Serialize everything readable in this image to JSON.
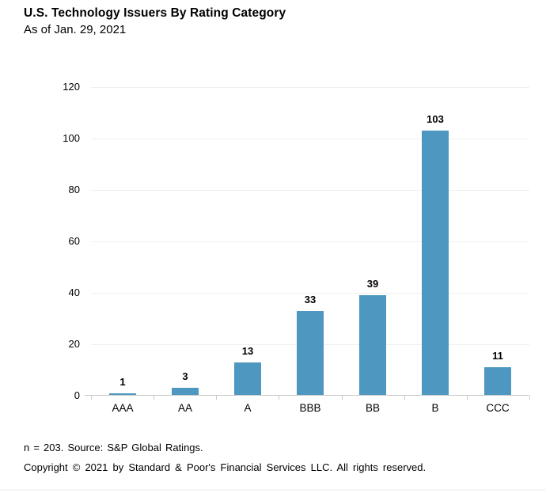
{
  "header": {
    "title": "U.S. Technology Issuers By Rating Category",
    "subtitle": "As of Jan. 29, 2021"
  },
  "chart_data": {
    "type": "bar",
    "title": "U.S. Technology Issuers By Rating Category",
    "subtitle": "As of Jan. 29, 2021",
    "categories": [
      "AAA",
      "AA",
      "A",
      "BBB",
      "BB",
      "B",
      "CCC"
    ],
    "values": [
      1,
      3,
      13,
      33,
      39,
      103,
      11
    ],
    "xlabel": "",
    "ylabel": "",
    "ylim": [
      0,
      120
    ],
    "yticks": [
      0,
      20,
      40,
      60,
      80,
      100,
      120
    ],
    "grid": "horizontal",
    "legend": "none",
    "bar_color": "#4d97c0",
    "gridline_color": "#efefef",
    "axis_color": "#c9c9c9",
    "text_color": "#000000"
  },
  "footer": {
    "source": "n = 203. Source: S&P Global Ratings.",
    "copyright": "Copyright © 2021 by Standard & Poor's Financial Services LLC. All rights reserved."
  }
}
